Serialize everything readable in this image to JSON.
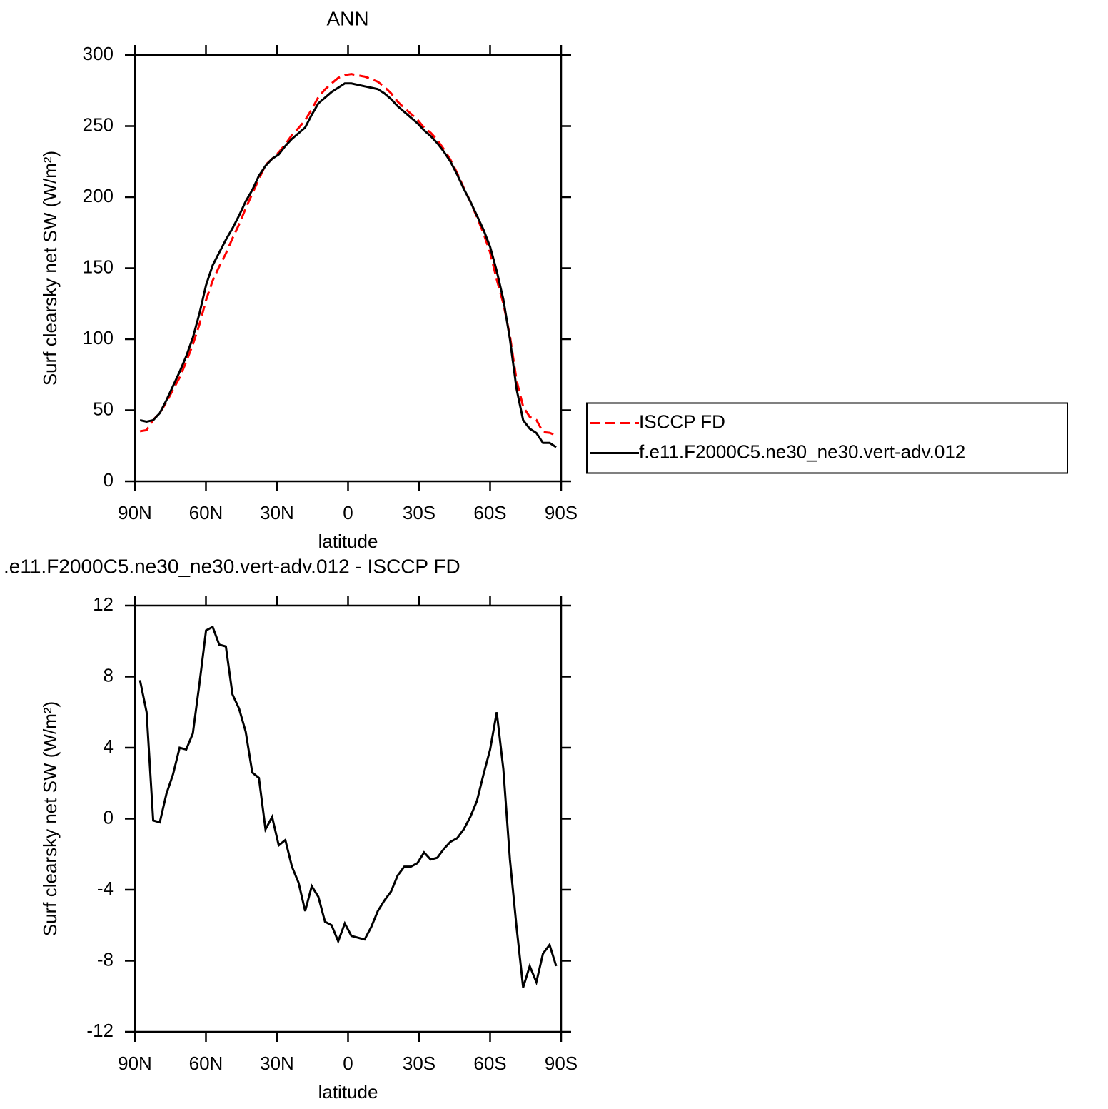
{
  "chart_data": [
    {
      "type": "line",
      "title": "ANN",
      "xlabel": "latitude",
      "ylabel": "Surf clearsky net SW (W/m²)",
      "x": [
        87.86,
        85.07,
        82.28,
        79.49,
        76.7,
        73.91,
        71.12,
        68.33,
        65.54,
        62.75,
        59.96,
        57.17,
        54.38,
        51.59,
        48.8,
        46.01,
        43.22,
        40.43,
        37.64,
        34.85,
        32.06,
        29.27,
        26.48,
        23.69,
        20.9,
        18.11,
        15.32,
        12.53,
        9.74,
        6.95,
        4.16,
        1.37,
        -1.42,
        -4.21,
        -7.0,
        -9.79,
        -12.58,
        -15.37,
        -18.16,
        -20.95,
        -23.74,
        -26.53,
        -29.32,
        -32.11,
        -34.9,
        -37.69,
        -40.48,
        -43.27,
        -46.06,
        -48.85,
        -51.64,
        -54.43,
        -57.22,
        -60.01,
        -62.8,
        -65.59,
        -68.38,
        -71.17,
        -73.96,
        -76.75,
        -79.54,
        -82.33,
        -85.12,
        -87.91
      ],
      "series": [
        {
          "name": "ISCCP FD",
          "color": "#ff0000",
          "linestyle": "dashed",
          "values": [
            35.2,
            36,
            43.1,
            48.2,
            55.6,
            64.5,
            73,
            84.1,
            96.2,
            110.4,
            127.4,
            141.2,
            151.2,
            160.3,
            171,
            180.8,
            192.1,
            202.4,
            212.7,
            222.6,
            226.9,
            231.5,
            237.2,
            243.7,
            248.6,
            254.2,
            261.8,
            270.4,
            275.8,
            280,
            283.9,
            285.9,
            286.6,
            285.7,
            284.8,
            283.1,
            281.2,
            277.6,
            273.1,
            267.2,
            262.7,
            258.7,
            254.5,
            248.9,
            245.3,
            240.2,
            233.7,
            226.3,
            217.1,
            206.6,
            196.9,
            186,
            174.5,
            161.1,
            142,
            125.2,
            102.3,
            71.1,
            52.5,
            45.3,
            43.2,
            34.6,
            34.1,
            32.3
          ]
        },
        {
          "name": "f.e11.F2000C5.ne30_ne30.vert-adv.012",
          "color": "#000000",
          "linestyle": "solid",
          "values": [
            43,
            42,
            43,
            48,
            57,
            67,
            77,
            88,
            101,
            118,
            138,
            152,
            161,
            170,
            178,
            187,
            197,
            205,
            215,
            222,
            227,
            230,
            236,
            241,
            245,
            249,
            258,
            266,
            270,
            274,
            277,
            280,
            280,
            279,
            278,
            277,
            276,
            273,
            269,
            264,
            260,
            256,
            252,
            247,
            243,
            238,
            232,
            225,
            216,
            206,
            197,
            187,
            177,
            165,
            148,
            128,
            100,
            65,
            43,
            37,
            34,
            27,
            27,
            24
          ]
        }
      ],
      "xlim": [
        90,
        -90
      ],
      "xticks": [
        {
          "value": 90,
          "label": "90N"
        },
        {
          "value": 60,
          "label": "60N"
        },
        {
          "value": 30,
          "label": "30N"
        },
        0,
        {
          "value": -30,
          "label": "30S"
        },
        {
          "value": -60,
          "label": "60S"
        },
        {
          "value": -90,
          "label": "90S"
        }
      ],
      "ylim": [
        0,
        300
      ],
      "yticks": [
        0,
        50,
        100,
        150,
        200,
        250,
        300
      ],
      "legend": "right"
    },
    {
      "type": "line",
      "title": ".e11.F2000C5.ne30_ne30.vert-adv.012 - ISCCP FD",
      "xlabel": "latitude",
      "ylabel": "Surf clearsky net SW (W/m²)",
      "x": [
        87.86,
        85.07,
        82.28,
        79.49,
        76.7,
        73.91,
        71.12,
        68.33,
        65.54,
        62.75,
        59.96,
        57.17,
        54.38,
        51.59,
        48.8,
        46.01,
        43.22,
        40.43,
        37.64,
        34.85,
        32.06,
        29.27,
        26.48,
        23.69,
        20.9,
        18.11,
        15.32,
        12.53,
        9.74,
        6.95,
        4.16,
        1.37,
        -1.42,
        -4.21,
        -7.0,
        -9.79,
        -12.58,
        -15.37,
        -18.16,
        -20.95,
        -23.74,
        -26.53,
        -29.32,
        -32.11,
        -34.9,
        -37.69,
        -40.48,
        -43.27,
        -46.06,
        -48.85,
        -51.64,
        -54.43,
        -57.22,
        -60.01,
        -62.8,
        -65.59,
        -68.38,
        -71.17,
        -73.96,
        -76.75,
        -79.54,
        -82.33,
        -85.12,
        -87.91
      ],
      "color": "#000000",
      "values": [
        7.8,
        6.0,
        -0.1,
        -0.2,
        1.4,
        2.5,
        4.0,
        3.9,
        4.8,
        7.6,
        10.6,
        10.8,
        9.8,
        9.7,
        7.0,
        6.2,
        4.9,
        2.6,
        2.3,
        -0.6,
        0.1,
        -1.5,
        -1.2,
        -2.7,
        -3.6,
        -5.2,
        -3.8,
        -4.4,
        -5.8,
        -6.0,
        -6.9,
        -5.9,
        -6.6,
        -6.7,
        -6.8,
        -6.1,
        -5.2,
        -4.6,
        -4.1,
        -3.2,
        -2.7,
        -2.7,
        -2.5,
        -1.9,
        -2.3,
        -2.2,
        -1.7,
        -1.3,
        -1.1,
        -0.6,
        0.1,
        1.0,
        2.5,
        3.9,
        6.0,
        2.8,
        -2.3,
        -6.1,
        -9.5,
        -8.3,
        -9.2,
        -7.6,
        -7.1,
        -8.3
      ],
      "xlim": [
        90,
        -90
      ],
      "xticks": [
        {
          "value": 90,
          "label": "90N"
        },
        {
          "value": 60,
          "label": "60N"
        },
        {
          "value": 30,
          "label": "30N"
        },
        0,
        {
          "value": -30,
          "label": "30S"
        },
        {
          "value": -60,
          "label": "60S"
        },
        {
          "value": -90,
          "label": "90S"
        }
      ],
      "ylim": [
        -12,
        12
      ],
      "yticks": [
        -12,
        -8,
        -4,
        0,
        4,
        8,
        12
      ]
    }
  ]
}
